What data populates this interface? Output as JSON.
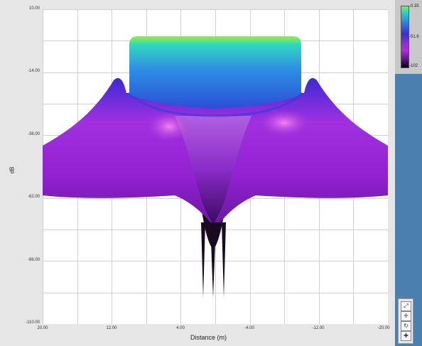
{
  "chart_data": {
    "type": "area",
    "title": "",
    "xlabel": "Distance (m)",
    "ylabel": "dB",
    "xlim": [
      20.0,
      -20.0
    ],
    "ylim": [
      -110.0,
      10.0
    ],
    "x_ticks": [
      "20.00",
      "12.00",
      "4.00",
      "-4.00",
      "-12.00",
      "-20.00"
    ],
    "y_ticks": [
      "10.00",
      "-14.00",
      "-38.00",
      "-62.00",
      "-86.00",
      "-110.00"
    ],
    "grid": true,
    "series": [
      {
        "x": [
          20,
          17,
          14,
          12.5,
          11.5,
          10,
          9,
          8,
          4,
          0,
          -4,
          -8,
          -9,
          -10,
          -11.5,
          -12.5,
          -14,
          -17,
          -20
        ],
        "values": [
          -42,
          -30,
          -20,
          -14,
          -16,
          -18,
          -12,
          7,
          7,
          7,
          7,
          7,
          -12,
          -18,
          -16,
          -14,
          -20,
          -30,
          -42
        ]
      }
    ],
    "colorbar": {
      "labels": [
        "-0.35",
        "-51.6",
        "-102"
      ]
    }
  },
  "tools": [
    "zoom",
    "pan",
    "rotate",
    "cursor"
  ]
}
